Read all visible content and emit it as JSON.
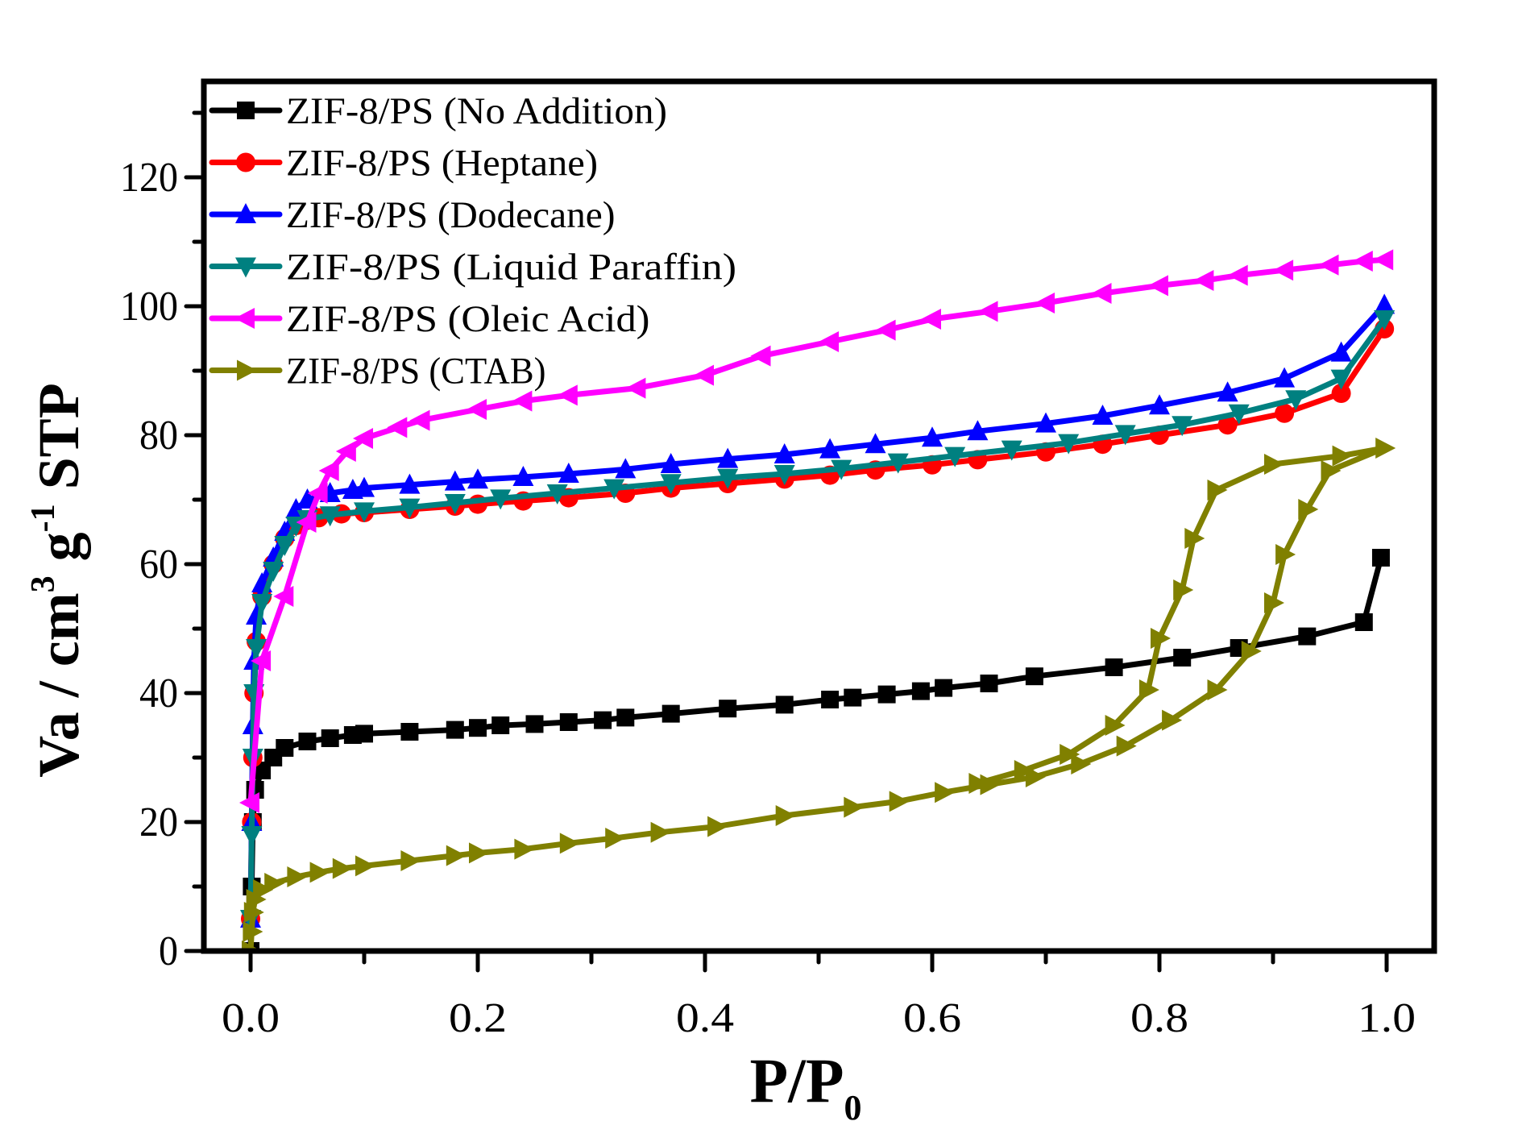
{
  "chart_data": {
    "type": "line",
    "title": "",
    "xlabel": "P/P",
    "xlabel_subscript": "0",
    "ylabel_parts": [
      "Va / cm",
      "3",
      " g",
      "-1",
      " STP"
    ],
    "xlim": [
      -0.04,
      1.04
    ],
    "ylim": [
      0,
      135
    ],
    "x_ticks": [
      0.0,
      0.2,
      0.4,
      0.6,
      0.8,
      1.0
    ],
    "x_tick_labels": [
      "0.0",
      "0.2",
      "0.4",
      "0.6",
      "0.8",
      "1.0"
    ],
    "x_minor_ticks": [
      0.1,
      0.3,
      0.5,
      0.7,
      0.9
    ],
    "y_ticks": [
      0,
      20,
      40,
      60,
      80,
      100,
      120
    ],
    "y_tick_labels": [
      "0",
      "20",
      "40",
      "60",
      "80",
      "100",
      "120"
    ],
    "y_minor_ticks": [
      10,
      30,
      50,
      70,
      90,
      110,
      130
    ],
    "grid": false,
    "legend_position": "top-left",
    "series": [
      {
        "name": "ZIF-8/PS (No Addition)",
        "color": "#000000",
        "marker": "square",
        "x": [
          0,
          0.001,
          0.002,
          0.004,
          0.01,
          0.02,
          0.03,
          0.05,
          0.07,
          0.09,
          0.1,
          0.14,
          0.18,
          0.2,
          0.22,
          0.25,
          0.28,
          0.31,
          0.33,
          0.37,
          0.42,
          0.47,
          0.51,
          0.53,
          0.56,
          0.59,
          0.61,
          0.65,
          0.69,
          0.76,
          0.82,
          0.87,
          0.93,
          0.98,
          0.995
        ],
        "y": [
          0,
          10,
          20,
          25,
          28,
          30,
          31.5,
          32.5,
          33,
          33.5,
          33.7,
          34,
          34.3,
          34.6,
          35,
          35.2,
          35.5,
          35.8,
          36.2,
          36.8,
          37.6,
          38.2,
          39,
          39.3,
          39.8,
          40.3,
          40.8,
          41.5,
          42.6,
          44,
          45.5,
          47,
          48.8,
          51,
          61
        ]
      },
      {
        "name": "ZIF-8/PS (Heptane)",
        "color": "#ff0000",
        "marker": "circle",
        "x": [
          0,
          0.001,
          0.002,
          0.003,
          0.005,
          0.01,
          0.02,
          0.03,
          0.04,
          0.05,
          0.06,
          0.08,
          0.1,
          0.14,
          0.18,
          0.2,
          0.24,
          0.28,
          0.33,
          0.37,
          0.42,
          0.47,
          0.51,
          0.55,
          0.6,
          0.64,
          0.7,
          0.75,
          0.8,
          0.86,
          0.91,
          0.96,
          0.998
        ],
        "y": [
          5,
          20,
          30,
          40,
          48,
          55,
          60,
          64,
          66,
          66.8,
          67.2,
          67.8,
          68,
          68.5,
          69,
          69.3,
          69.8,
          70.3,
          71,
          71.8,
          72.5,
          73.2,
          73.8,
          74.6,
          75.4,
          76.2,
          77.4,
          78.6,
          80,
          81.6,
          83.4,
          86.5,
          96.5
        ]
      },
      {
        "name": "ZIF-8/PS (Dodecane)",
        "color": "#0000ff",
        "marker": "triangle-up",
        "x": [
          0,
          0.001,
          0.002,
          0.003,
          0.005,
          0.01,
          0.02,
          0.03,
          0.04,
          0.05,
          0.07,
          0.09,
          0.1,
          0.14,
          0.18,
          0.2,
          0.24,
          0.28,
          0.33,
          0.37,
          0.42,
          0.47,
          0.51,
          0.55,
          0.6,
          0.64,
          0.7,
          0.75,
          0.8,
          0.86,
          0.91,
          0.96,
          0.998
        ],
        "y": [
          5,
          20,
          35,
          45,
          52,
          57,
          61,
          65,
          68.5,
          70,
          71,
          71.5,
          71.8,
          72.3,
          72.8,
          73.1,
          73.5,
          74,
          74.7,
          75.5,
          76.3,
          77,
          77.8,
          78.6,
          79.6,
          80.6,
          81.8,
          83,
          84.6,
          86.6,
          88.8,
          92.8,
          100.2
        ]
      },
      {
        "name": "ZIF-8/PS (Liquid Paraffin)",
        "color": "#008080",
        "marker": "triangle-down",
        "x": [
          0,
          0.001,
          0.002,
          0.003,
          0.005,
          0.01,
          0.02,
          0.03,
          0.04,
          0.05,
          0.07,
          0.1,
          0.14,
          0.18,
          0.22,
          0.27,
          0.32,
          0.37,
          0.42,
          0.47,
          0.52,
          0.57,
          0.62,
          0.67,
          0.72,
          0.77,
          0.82,
          0.87,
          0.92,
          0.96,
          0.998
        ],
        "y": [
          5,
          18,
          30,
          40,
          47,
          54,
          59,
          63,
          66,
          67,
          67.6,
          68.2,
          68.8,
          69.5,
          70.2,
          71,
          71.8,
          72.6,
          73.4,
          74,
          74.8,
          75.8,
          76.8,
          77.8,
          78.8,
          80.2,
          81.6,
          83.4,
          85.6,
          88.8,
          98
        ]
      },
      {
        "name": "ZIF-8/PS (Oleic Acid)",
        "color": "#ff00ff",
        "marker": "triangle-left",
        "x": [
          0,
          0.01,
          0.03,
          0.05,
          0.06,
          0.07,
          0.085,
          0.1,
          0.13,
          0.15,
          0.2,
          0.24,
          0.28,
          0.34,
          0.4,
          0.45,
          0.51,
          0.56,
          0.6,
          0.65,
          0.7,
          0.75,
          0.8,
          0.84,
          0.87,
          0.91,
          0.95,
          0.98,
          0.998
        ],
        "y": [
          23,
          45,
          55,
          66.5,
          71,
          74.5,
          77.5,
          79.5,
          81.2,
          82.3,
          84,
          85.3,
          86.2,
          87.3,
          89.3,
          92.3,
          94.5,
          96.3,
          98,
          99.2,
          100.5,
          102,
          103.2,
          104,
          104.8,
          105.6,
          106.4,
          107,
          107.2
        ]
      },
      {
        "name": "ZIF-8/PS (CTAB)",
        "color": "#808000",
        "marker": "triangle-right",
        "x": [
          0,
          0.001,
          0.002,
          0.004,
          0.01,
          0.02,
          0.04,
          0.06,
          0.08,
          0.1,
          0.14,
          0.18,
          0.2,
          0.24,
          0.28,
          0.32,
          0.36,
          0.41,
          0.47,
          0.53,
          0.57,
          0.61,
          0.65,
          0.69,
          0.73,
          0.77,
          0.81,
          0.85,
          0.88,
          0.9,
          0.91,
          0.93,
          0.95,
          0.998,
          0.96,
          0.9,
          0.85,
          0.83,
          0.82,
          0.8,
          0.79,
          0.76,
          0.72,
          0.68,
          0.64
        ],
        "y": [
          0,
          3,
          6,
          8,
          9.5,
          10.5,
          11.5,
          12.2,
          12.8,
          13.2,
          14,
          14.8,
          15.2,
          15.8,
          16.7,
          17.5,
          18.4,
          19.3,
          21,
          22.3,
          23.2,
          24.6,
          25.8,
          27,
          29,
          31.8,
          35.8,
          40.5,
          46.5,
          54,
          61.5,
          68.5,
          74.5,
          78,
          76.8,
          75.5,
          71.5,
          64,
          56,
          48.5,
          40.5,
          35,
          30.5,
          28,
          26
        ]
      }
    ]
  }
}
